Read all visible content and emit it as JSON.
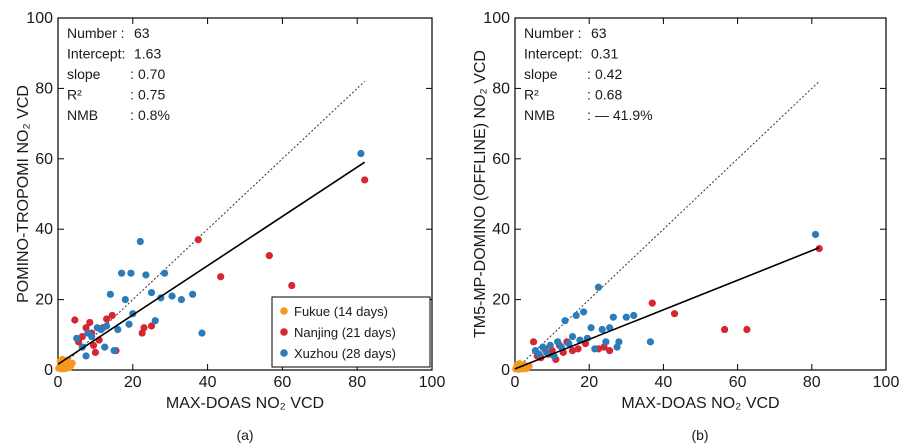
{
  "chart_data": [
    {
      "type": "scatter",
      "panel_label": "(a)",
      "xlabel": "MAX-DOAS NO₂ VCD",
      "ylabel": "POMINO-TROPOMI NO₂ VCD",
      "xlim": [
        0,
        100
      ],
      "ylim": [
        0,
        100
      ],
      "xticks": [
        "0",
        "20",
        "40",
        "60",
        "80",
        "100"
      ],
      "yticks": [
        "0",
        "20",
        "40",
        "60",
        "80",
        "100"
      ],
      "stats": [
        {
          "label": "Number :",
          "value": "63"
        },
        {
          "label": "Intercept:",
          "value": "1.63"
        },
        {
          "label": "slope",
          "sep": ":",
          "value": "0.70"
        },
        {
          "label": "R²",
          "sep": ":",
          "value": "0.75"
        },
        {
          "label": "NMB",
          "sep": ":",
          "value": "0.8%"
        }
      ],
      "fit": {
        "slope": 0.7,
        "intercept": 1.63,
        "x_range": [
          0,
          82
        ]
      },
      "one_to_one": {
        "x_range": [
          0,
          82
        ]
      },
      "legend_position": "bottom-right",
      "series": [
        {
          "name": "Fukue (14 days)",
          "color": "#f39a1e",
          "points": [
            [
              0.2,
              0.5
            ],
            [
              0.5,
              0.9
            ],
            [
              0.8,
              1.5
            ],
            [
              1.0,
              0.3
            ],
            [
              1.4,
              2.2
            ],
            [
              1.8,
              1.0
            ],
            [
              2.0,
              0.4
            ],
            [
              2.5,
              2.8
            ],
            [
              2.8,
              1.6
            ],
            [
              3.0,
              0.7
            ],
            [
              3.4,
              1.2
            ],
            [
              0.6,
              2.5
            ],
            [
              1.2,
              3.0
            ],
            [
              3.8,
              1.9
            ]
          ]
        },
        {
          "name": "Nanjing (21 days)",
          "color": "#d62631",
          "points": [
            [
              4.5,
              14.2
            ],
            [
              5.5,
              8.0
            ],
            [
              6.5,
              9.5
            ],
            [
              7.5,
              12.0
            ],
            [
              8.5,
              13.5
            ],
            [
              9.5,
              7.0
            ],
            [
              10.0,
              5.0
            ],
            [
              11.0,
              8.5
            ],
            [
              12.0,
              12.0
            ],
            [
              13.0,
              14.5
            ],
            [
              14.5,
              15.5
            ],
            [
              15.5,
              5.5
            ],
            [
              22.5,
              10.5
            ],
            [
              23.0,
              12.0
            ],
            [
              25.0,
              12.5
            ],
            [
              37.5,
              37.0
            ],
            [
              43.5,
              26.5
            ],
            [
              56.5,
              32.5
            ],
            [
              62.5,
              24.0
            ],
            [
              82.0,
              54.0
            ],
            [
              9.0,
              10.5
            ]
          ]
        },
        {
          "name": "Xuzhou (28 days)",
          "color": "#2a7dba",
          "points": [
            [
              5.0,
              9.0
            ],
            [
              6.5,
              6.5
            ],
            [
              7.5,
              4.0
            ],
            [
              8.0,
              10.5
            ],
            [
              9.0,
              9.5
            ],
            [
              10.5,
              12.0
            ],
            [
              11.5,
              11.5
            ],
            [
              12.5,
              6.5
            ],
            [
              13.0,
              12.5
            ],
            [
              14.0,
              21.5
            ],
            [
              15.0,
              5.5
            ],
            [
              16.0,
              11.5
            ],
            [
              17.0,
              27.5
            ],
            [
              18.0,
              20.0
            ],
            [
              19.0,
              13.0
            ],
            [
              19.5,
              27.5
            ],
            [
              20.0,
              16.0
            ],
            [
              22.0,
              36.5
            ],
            [
              23.5,
              27.0
            ],
            [
              25.0,
              22.0
            ],
            [
              26.0,
              14.0
            ],
            [
              27.5,
              20.5
            ],
            [
              28.5,
              27.5
            ],
            [
              30.5,
              21.0
            ],
            [
              33.0,
              20.0
            ],
            [
              36.0,
              21.5
            ],
            [
              38.5,
              10.5
            ],
            [
              81.0,
              61.5
            ]
          ]
        }
      ]
    },
    {
      "type": "scatter",
      "panel_label": "(b)",
      "xlabel": "MAX-DOAS NO₂ VCD",
      "ylabel": "TM5-MP-DOMINO (OFFLINE) NO₂ VCD",
      "xlim": [
        0,
        100
      ],
      "ylim": [
        0,
        100
      ],
      "xticks": [
        "0",
        "20",
        "40",
        "60",
        "80",
        "100"
      ],
      "yticks": [
        "0",
        "20",
        "40",
        "60",
        "80",
        "100"
      ],
      "stats": [
        {
          "label": "Number :",
          "value": "63"
        },
        {
          "label": "Intercept:",
          "value": "0.31"
        },
        {
          "label": "slope",
          "sep": ":",
          "value": "0.42"
        },
        {
          "label": "R²",
          "sep": ":",
          "value": "0.68"
        },
        {
          "label": "NMB",
          "sep": ":",
          "value": "— 41.9%"
        }
      ],
      "fit": {
        "slope": 0.42,
        "intercept": 0.31,
        "x_range": [
          0,
          82
        ]
      },
      "one_to_one": {
        "x_range": [
          0,
          82
        ]
      },
      "series": [
        {
          "name": "Fukue (14 days)",
          "color": "#f39a1e",
          "points": [
            [
              0.2,
              0.3
            ],
            [
              0.5,
              0.6
            ],
            [
              0.8,
              1.0
            ],
            [
              1.0,
              0.2
            ],
            [
              1.4,
              1.2
            ],
            [
              1.8,
              0.6
            ],
            [
              2.0,
              0.3
            ],
            [
              2.5,
              1.5
            ],
            [
              2.8,
              0.9
            ],
            [
              3.0,
              0.4
            ],
            [
              3.4,
              0.8
            ],
            [
              0.6,
              1.4
            ],
            [
              1.2,
              1.8
            ],
            [
              3.8,
              1.1
            ]
          ]
        },
        {
          "name": "Nanjing (21 days)",
          "color": "#d62631",
          "points": [
            [
              5.0,
              8.0
            ],
            [
              6.0,
              4.0
            ],
            [
              7.0,
              3.5
            ],
            [
              8.0,
              6.0
            ],
            [
              9.0,
              4.5
            ],
            [
              10.0,
              5.5
            ],
            [
              11.0,
              3.0
            ],
            [
              12.0,
              7.0
            ],
            [
              13.0,
              5.0
            ],
            [
              14.0,
              8.0
            ],
            [
              15.5,
              5.5
            ],
            [
              17.0,
              6.0
            ],
            [
              19.0,
              7.5
            ],
            [
              22.5,
              6.0
            ],
            [
              24.0,
              6.5
            ],
            [
              25.5,
              5.5
            ],
            [
              37.0,
              19.0
            ],
            [
              43.0,
              16.0
            ],
            [
              56.5,
              11.5
            ],
            [
              62.5,
              11.5
            ],
            [
              82.0,
              34.5
            ]
          ]
        },
        {
          "name": "Xuzhou (28 days)",
          "color": "#2a7dba",
          "points": [
            [
              5.5,
              5.5
            ],
            [
              6.5,
              4.5
            ],
            [
              7.5,
              6.5
            ],
            [
              8.5,
              5.0
            ],
            [
              9.5,
              7.0
            ],
            [
              10.5,
              4.0
            ],
            [
              11.5,
              8.0
            ],
            [
              12.5,
              6.5
            ],
            [
              13.5,
              14.0
            ],
            [
              14.5,
              7.5
            ],
            [
              15.5,
              9.5
            ],
            [
              16.5,
              15.5
            ],
            [
              17.5,
              8.5
            ],
            [
              18.5,
              16.5
            ],
            [
              19.5,
              9.0
            ],
            [
              20.5,
              12.0
            ],
            [
              21.5,
              6.0
            ],
            [
              22.5,
              23.5
            ],
            [
              23.5,
              11.5
            ],
            [
              24.5,
              8.0
            ],
            [
              25.5,
              12.0
            ],
            [
              26.5,
              15.0
            ],
            [
              27.5,
              6.5
            ],
            [
              28.0,
              8.0
            ],
            [
              30.0,
              15.0
            ],
            [
              32.0,
              15.5
            ],
            [
              36.5,
              8.0
            ],
            [
              81.0,
              38.5
            ]
          ]
        }
      ]
    }
  ]
}
